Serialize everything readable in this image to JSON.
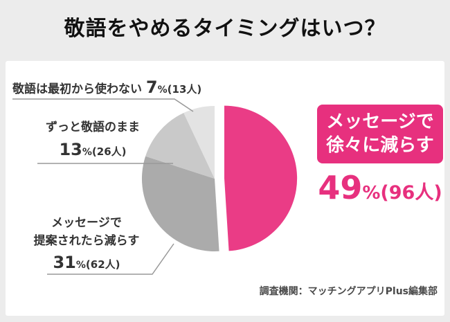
{
  "page": {
    "title": "敬語をやめるタイミングはいつ？",
    "source": "調査機関：マッチングアプリPlus編集部",
    "background": "#ececec",
    "accent_pink": "#e7307e"
  },
  "chart_data": {
    "type": "pie",
    "title": "敬語をやめるタイミングはいつ？",
    "legend_position": "none",
    "slices": [
      {
        "label": "メッセージで徐々に減らす",
        "percent": 49,
        "count": 96,
        "color": "#ea3c86",
        "exploded": true
      },
      {
        "label": "メッセージで提案されたら減らす",
        "percent": 31,
        "count": 62,
        "color": "#ababab",
        "exploded": false
      },
      {
        "label": "ずっと敬語のまま",
        "percent": 13,
        "count": 26,
        "color": "#c9c9c9",
        "exploded": false
      },
      {
        "label": "敬語は最初から使わない",
        "percent": 7,
        "count": 13,
        "color": "#e3e3e3",
        "exploded": false
      }
    ],
    "annotations": {
      "callout_line1": "メッセージで",
      "callout_line2": "徐々に減らす",
      "callout_value": "49",
      "callout_unit": "%",
      "callout_count": "(96人)"
    }
  },
  "labels": {
    "l7": {
      "text": "敬語は最初から使わない ",
      "num": "7",
      "unit": "%",
      "count": "(13人)"
    },
    "l13": {
      "line1": "ずっと敬語のまま",
      "num": "13",
      "unit": "%",
      "count": "(26人)"
    },
    "l31": {
      "line1": "メッセージで",
      "line2": "提案されたら減らす",
      "num": "31",
      "unit": "%",
      "count": "(62人)"
    }
  }
}
